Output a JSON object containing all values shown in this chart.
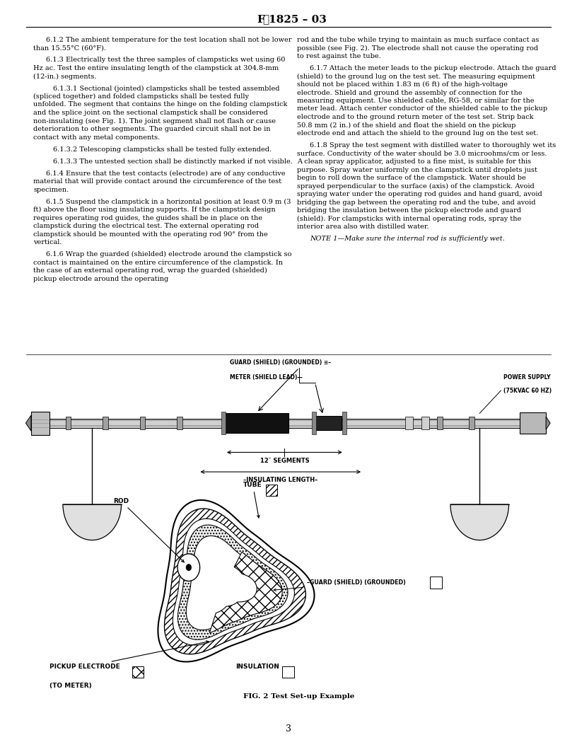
{
  "page_width": 8.16,
  "page_height": 10.56,
  "dpi": 100,
  "background_color": "#ffffff",
  "header_title": "F 1825 – 03",
  "page_number": "3",
  "left_paragraphs": [
    {
      "text": "6.1.2  The ambient temperature for the test location shall not be lower than 15.55°C (60°F).",
      "indent": true,
      "sub": false
    },
    {
      "text": "6.1.3  Electrically test the three samples of clampsticks wet using 60 Hz ac. Test the entire insulating length of the clampstick at 304.8-mm (12-in.) segments.",
      "indent": true,
      "sub": false
    },
    {
      "text": "6.1.3.1  Sectional (jointed) clampsticks shall be tested assembled (spliced together) and folded clampsticks shall be tested fully unfolded. The segment that contains the hinge on the folding clampstick and the splice joint on the sectional clampstick shall be considered non-insulating (see Fig. 1). The joint segment shall not flash or cause deterioration to other segments. The guarded circuit shall not be in contact with any metal components.",
      "indent": true,
      "sub": true
    },
    {
      "text": "6.1.3.2  Telescoping clampsticks shall be tested fully extended.",
      "indent": true,
      "sub": true
    },
    {
      "text": "6.1.3.3  The untested section shall be distinctly marked if not visible.",
      "indent": true,
      "sub": true
    },
    {
      "text": "6.1.4  Ensure that the test contacts (electrode) are of any conductive material that will provide contact around the circumference of the test specimen.",
      "indent": true,
      "sub": false
    },
    {
      "text": "6.1.5  Suspend the clampstick in a horizontal position at least 0.9 m (3 ft) above the floor using insulating supports. If the clampstick design requires operating rod guides, the guides shall be in place on the clampstick during the electrical test. The external operating rod clampstick should be mounted with the operating rod 90° from the vertical.",
      "indent": true,
      "sub": false
    },
    {
      "text": "6.1.6  Wrap the guarded (shielded) electrode around the clampstick so contact is maintained on the entire circumference of the clampstick. In the case of an external operating rod, wrap the guarded (shielded) pickup electrode around the operating",
      "indent": true,
      "sub": false
    }
  ],
  "right_paragraphs": [
    {
      "text": "rod and the tube while trying to maintain as much surface contact as possible (see Fig. 2). The electrode shall not cause the operating rod to rest against the tube.",
      "indent": false,
      "sub": false,
      "italic": false
    },
    {
      "text": "6.1.7  Attach the meter leads to the pickup electrode. Attach the guard (shield) to the ground lug on the test set. The measuring equipment should not be placed within 1.83 m (6 ft) of the high-voltage electrode. Shield and ground the assembly of connection for the measuring equipment. Use shielded cable, RG-58, or similar for the meter lead. Attach center conductor of the shielded cable to the pickup electrode and to the ground return meter of the test set. Strip back 50.8 mm (2 in.) of the shield and float the shield on the pickup electrode end and attach the shield to the ground lug on the test set.",
      "indent": true,
      "sub": false,
      "italic": false
    },
    {
      "text": "6.1.8  Spray the test segment with distilled water to thoroughly wet its surface. Conductivity of the water should be 3.0 microohms/cm or less. A clean spray applicator, adjusted to a fine mist, is suitable for this purpose. Spray water uniformly on the clampstick until droplets just begin to roll down the surface of the clampstick. Water should be sprayed perpendicular to the surface (axis) of the clampstick. Avoid spraying water under the operating rod guides and hand guard, avoid bridging the gap between the operating rod and the tube, and avoid bridging the insulation between the pickup electrode and guard (shield). For clampsticks with internal operating rods, spray the interior area also with distilled water.",
      "indent": true,
      "sub": false,
      "italic": false
    },
    {
      "text": "NOTE  1—Make sure the internal rod is sufficiently wet.",
      "indent": true,
      "sub": false,
      "italic": true
    }
  ]
}
